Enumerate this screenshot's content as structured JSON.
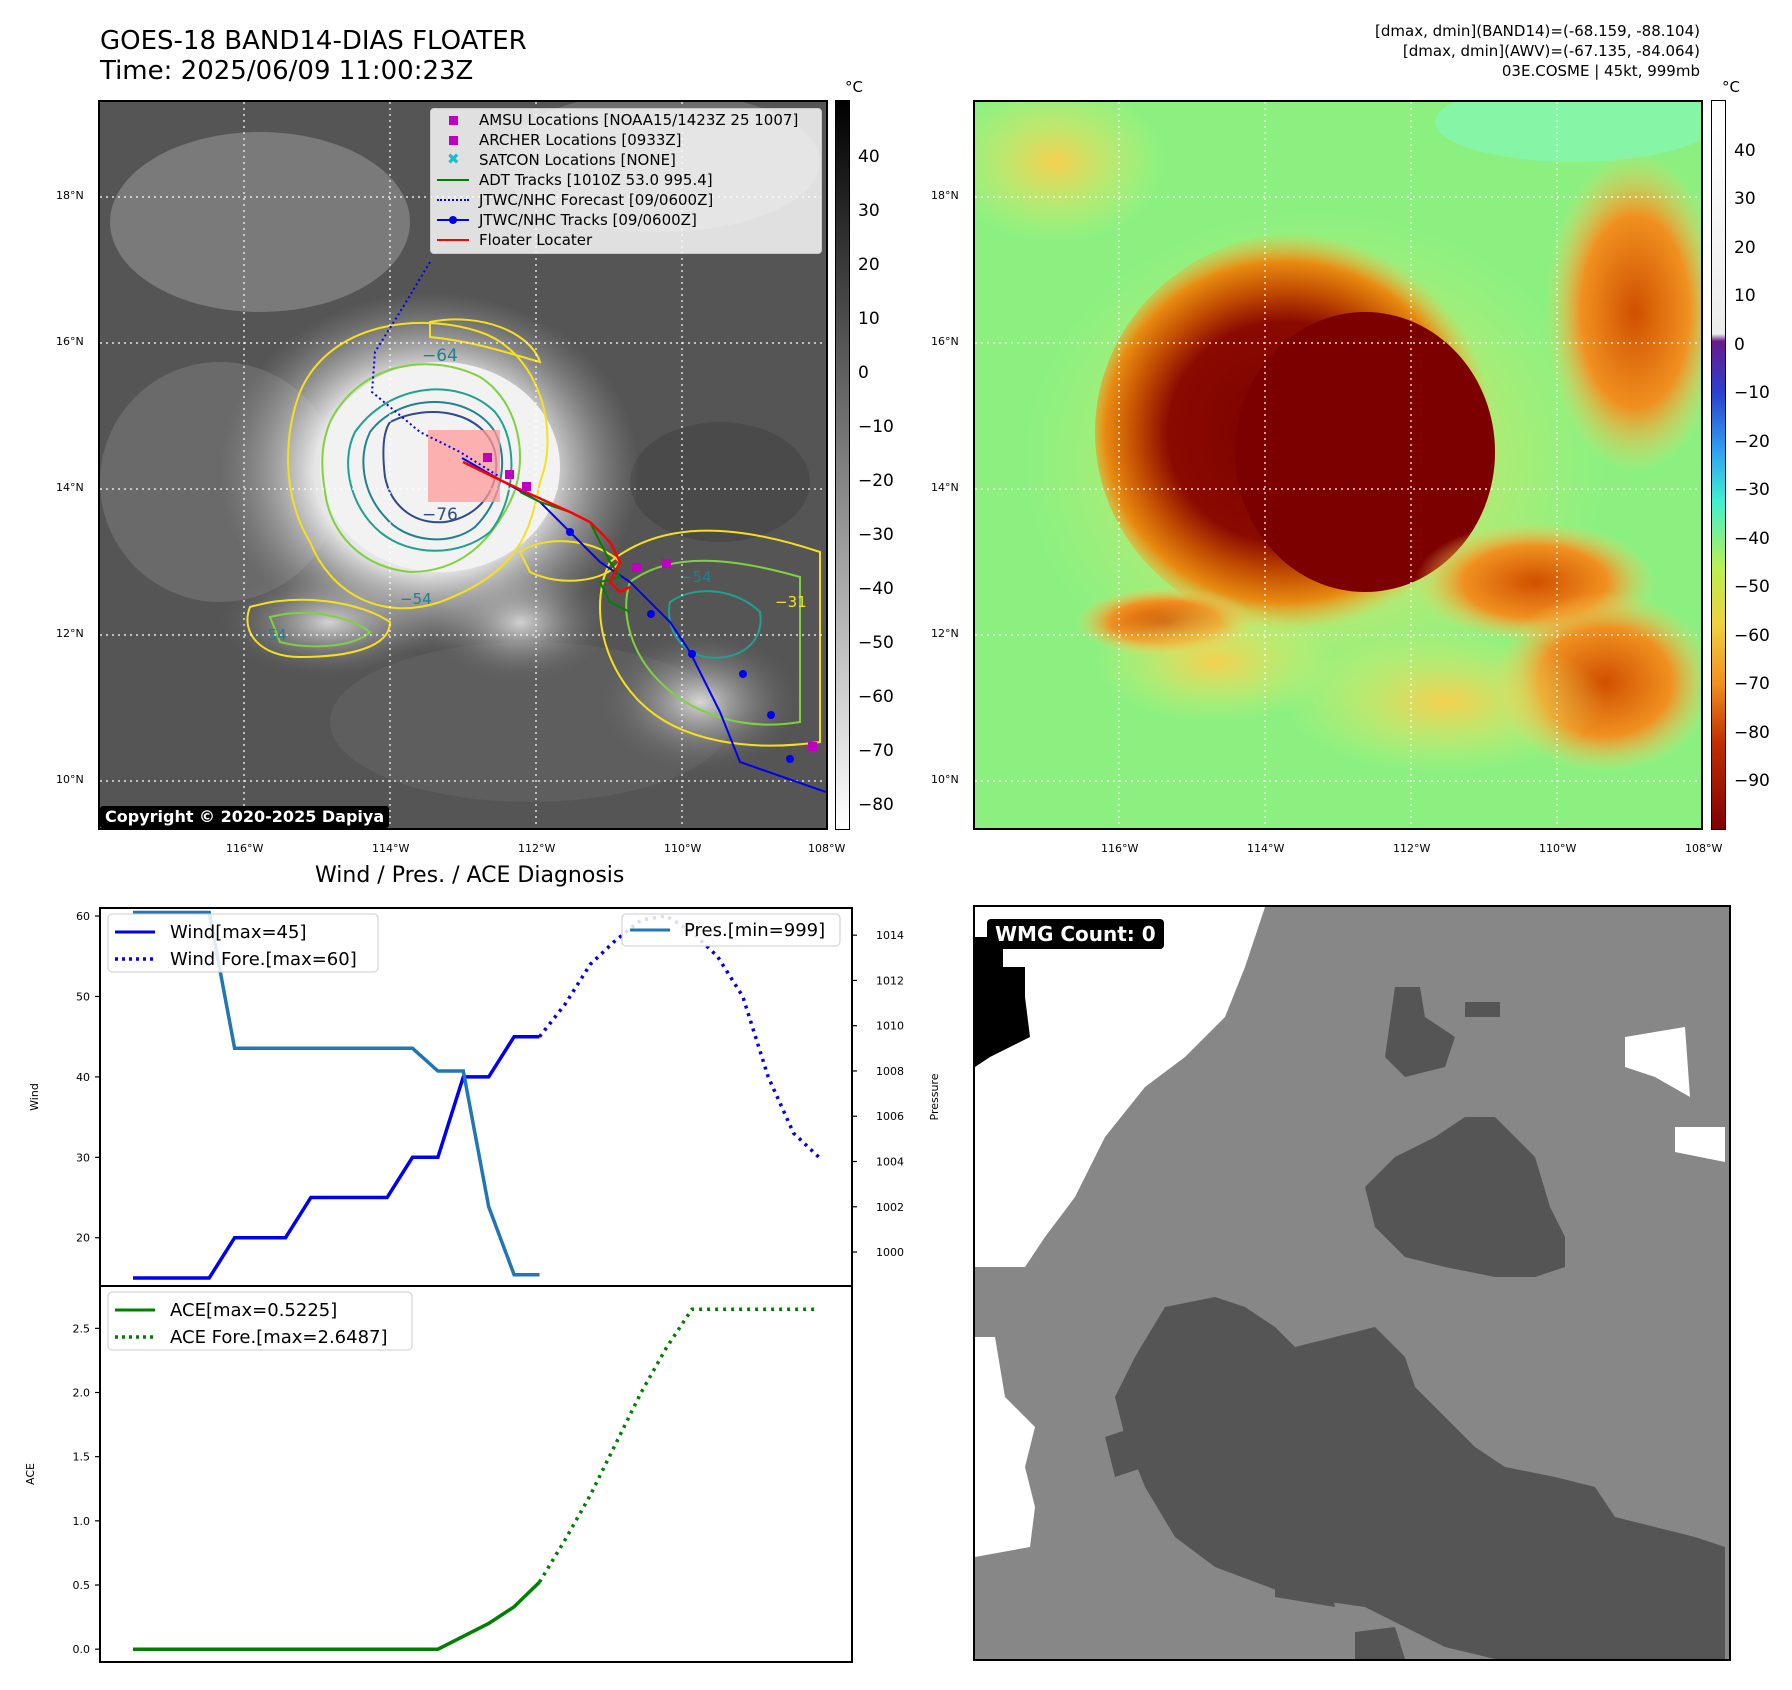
{
  "header": {
    "title_line1": "GOES-18 BAND14-DIAS FLOATER",
    "title_line2": "Time: 2025/06/09 11:00:23Z",
    "right_line1": "[dmax, dmin](BAND14)=(-68.159, -88.104)",
    "right_line2": "[dmax, dmin](AWV)=(-67.135, -84.064)",
    "right_line3": "03E.COSME | 45kt, 999mb"
  },
  "map_left": {
    "lat_labels": [
      "18°N",
      "16°N",
      "14°N",
      "12°N",
      "10°N"
    ],
    "lon_labels": [
      "116°W",
      "114°W",
      "112°W",
      "110°W",
      "108°W"
    ],
    "colorbar_unit": "°C",
    "colorbar_ticks": [
      "40",
      "30",
      "20",
      "10",
      "0",
      "−10",
      "−20",
      "−30",
      "−40",
      "−50",
      "−60",
      "−70",
      "−80"
    ],
    "contour_labels": [
      "−64",
      "−76",
      "−54",
      "−54",
      "−54",
      "−31"
    ],
    "copyright": "Copyright © 2020-2025 Dapiya",
    "legend": [
      {
        "label": "AMSU Locations [NOAA15/1423Z 25 1007]",
        "color": "#c000c0",
        "marker": "square"
      },
      {
        "label": "ARCHER Locations [0933Z]",
        "color": "#c000c0",
        "marker": "square"
      },
      {
        "label": "SATCON Locations [NONE]",
        "color": "#17becf",
        "marker": "x"
      },
      {
        "label": "ADT Tracks [1010Z 53.0 995.4]",
        "color": "#008000",
        "marker": "line"
      },
      {
        "label": "JTWC/NHC Forecast [09/0600Z]",
        "color": "#0000ff",
        "marker": "dotted"
      },
      {
        "label": "JTWC/NHC Tracks [09/0600Z]",
        "color": "#0000ff",
        "marker": "line-dot"
      },
      {
        "label": "Floater Locater",
        "color": "#ff0000",
        "marker": "line"
      }
    ]
  },
  "map_right": {
    "lat_labels": [
      "18°N",
      "16°N",
      "14°N",
      "12°N",
      "10°N"
    ],
    "lon_labels": [
      "116°W",
      "114°W",
      "112°W",
      "110°W",
      "108°W"
    ],
    "colorbar_unit": "°C",
    "colorbar_ticks": [
      "40",
      "30",
      "20",
      "10",
      "0",
      "−10",
      "−20",
      "−30",
      "−40",
      "−50",
      "−60",
      "−70",
      "−80",
      "−90"
    ]
  },
  "diagnosis": {
    "title": "Wind / Pres. / ACE Diagnosis",
    "wind_ylabel": "Wind",
    "pressure_ylabel": "Pressure",
    "ace_ylabel": "ACE",
    "legend_wind": "Wind[max=45]",
    "legend_wind_fore": "Wind Fore.[max=60]",
    "legend_pres": "Pres.[min=999]",
    "legend_ace": "ACE[max=0.5225]",
    "legend_ace_fore": "ACE Fore.[max=2.6487]"
  },
  "wmg": {
    "badge": "WMG Count: 0"
  },
  "chart_data": [
    {
      "type": "line",
      "title": "",
      "ylabel": "Wind",
      "ylim": [
        14,
        61
      ],
      "yticks": [
        20,
        30,
        40,
        50,
        60
      ],
      "series": [
        {
          "name": "Wind[max=45]",
          "color": "#0000ee",
          "style": "solid",
          "x": [
            0,
            1,
            2,
            3,
            4,
            5,
            6,
            7,
            8,
            9,
            10,
            11,
            12,
            13,
            14,
            15,
            16
          ],
          "y": [
            15,
            15,
            15,
            15,
            20,
            20,
            20,
            25,
            25,
            25,
            25,
            30,
            30,
            40,
            40,
            45,
            45
          ]
        },
        {
          "name": "Wind Fore.[max=60]",
          "color": "#0000ee",
          "style": "dotted",
          "x": [
            16,
            17,
            18,
            19,
            20,
            21,
            22,
            23,
            24,
            25,
            26,
            27
          ],
          "y": [
            45,
            49,
            54,
            57,
            59.5,
            60,
            58,
            55,
            50,
            40,
            33,
            30
          ]
        }
      ]
    },
    {
      "type": "line",
      "ylabel": "Pressure",
      "ylim": [
        998.5,
        1015.2
      ],
      "yticks": [
        1000,
        1002,
        1004,
        1006,
        1008,
        1010,
        1012,
        1014
      ],
      "series": [
        {
          "name": "Pres.[min=999]",
          "color": "#1f77b4",
          "style": "solid",
          "x": [
            0,
            1,
            2,
            3,
            4,
            5,
            6,
            7,
            8,
            9,
            10,
            11,
            12,
            13,
            14,
            15,
            16
          ],
          "y": [
            1015,
            1015,
            1015,
            1015,
            1009,
            1009,
            1009,
            1009,
            1009,
            1009,
            1009,
            1009,
            1008,
            1008,
            1002,
            999,
            999
          ]
        }
      ]
    },
    {
      "type": "line",
      "ylabel": "ACE",
      "ylim": [
        -0.1,
        2.83
      ],
      "yticks": [
        0.0,
        0.5,
        1.0,
        1.5,
        2.0,
        2.5
      ],
      "series": [
        {
          "name": "ACE[max=0.5225]",
          "color": "#008000",
          "style": "solid",
          "x": [
            0,
            1,
            2,
            3,
            4,
            5,
            6,
            7,
            8,
            9,
            10,
            11,
            12,
            13,
            14,
            15,
            16
          ],
          "y": [
            0,
            0,
            0,
            0,
            0,
            0,
            0,
            0,
            0,
            0,
            0,
            0,
            0,
            0.1,
            0.2,
            0.33,
            0.5225
          ]
        },
        {
          "name": "ACE Fore.[max=2.6487]",
          "color": "#008000",
          "style": "dotted",
          "x": [
            16,
            17,
            18,
            19,
            20,
            21,
            22,
            23,
            24,
            25,
            26,
            27
          ],
          "y": [
            0.5225,
            0.85,
            1.2,
            1.6,
            2.0,
            2.35,
            2.6487,
            2.6487,
            2.6487,
            2.6487,
            2.6487,
            2.6487
          ]
        }
      ]
    }
  ]
}
